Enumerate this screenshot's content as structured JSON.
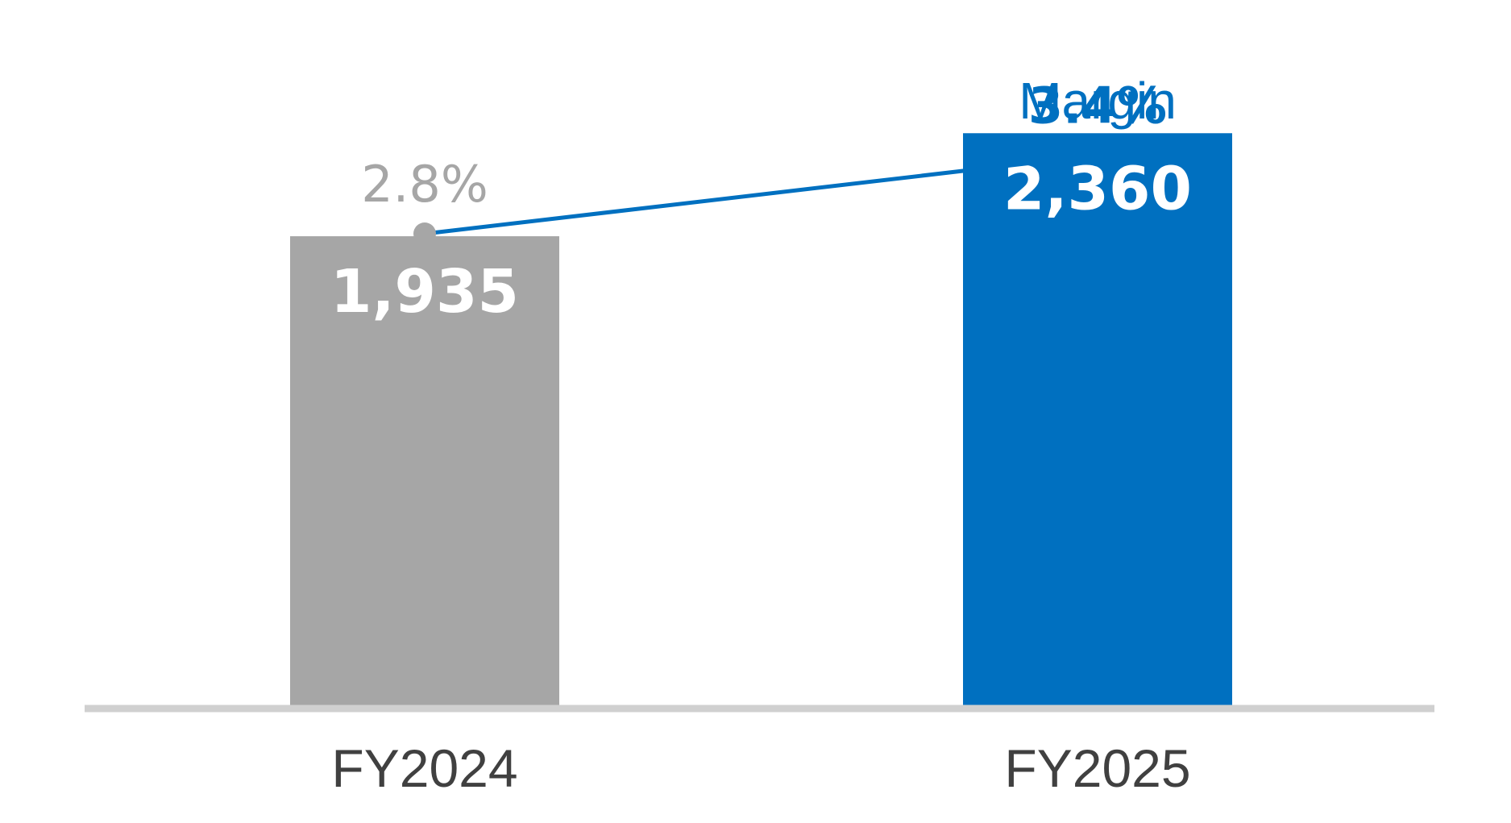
{
  "chart_data": {
    "type": "bar",
    "categories": [
      "FY2024",
      "FY2025"
    ],
    "values": [
      1935,
      2360
    ],
    "value_labels": [
      "1,935",
      "2,360"
    ],
    "series": [
      {
        "values": [
          1935,
          2360
        ],
        "labels": [
          "1,935",
          "2,360"
        ],
        "colors": [
          "#a6a6a6",
          "#0070c0"
        ]
      },
      {
        "name": "Margin",
        "type": "line",
        "values": [
          2.8,
          3.4
        ],
        "labels": [
          "2.8%",
          "3.4%"
        ],
        "colors": [
          "#a6a6a6",
          "#0070c0"
        ]
      }
    ],
    "ylim": [
      0,
      2700
    ],
    "legend": "none",
    "grid": false
  },
  "colors": {
    "prior": "#a6a6a6",
    "current": "#0070c0",
    "baseline": "#d0d0d0",
    "category_text": "#404040"
  }
}
